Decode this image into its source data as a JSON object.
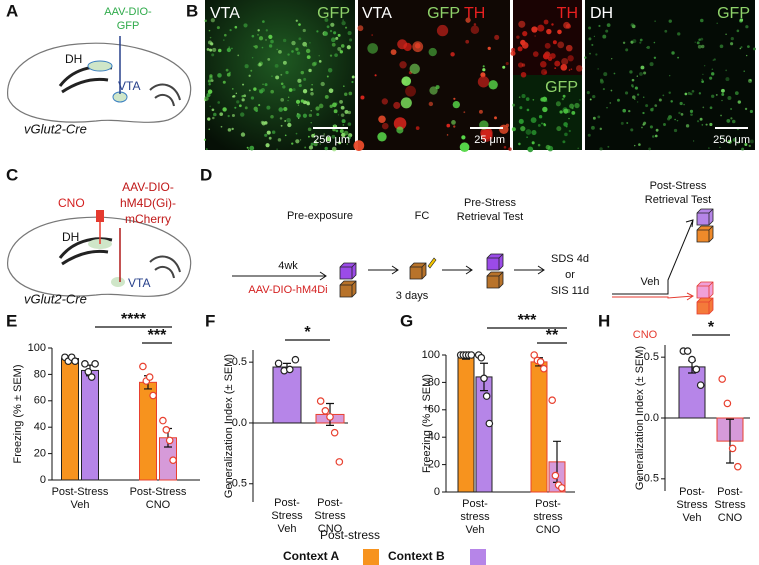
{
  "panel_a": {
    "letter": "A",
    "virus": [
      "AAV-DIO-",
      "GFP"
    ],
    "region_dh": "DH",
    "region_vta": "VTA",
    "mouse": "vGlut2-Cre"
  },
  "panel_b": {
    "letter": "B",
    "images": [
      {
        "labels": [
          "VTA",
          "GFP"
        ],
        "scale": "250 μm"
      },
      {
        "labels": [
          "VTA",
          "GFP",
          "TH"
        ],
        "scale": "25 μm"
      },
      {
        "labels": [
          "TH",
          "GFP"
        ]
      },
      {
        "labels": [
          "DH",
          "GFP"
        ],
        "scale": "250 μm"
      }
    ]
  },
  "panel_c": {
    "letter": "C",
    "drug": "CNO",
    "virus": [
      "AAV-DIO-",
      "hM4D(Gi)-",
      "mCherry"
    ],
    "region_dh": "DH",
    "region_vta": "VTA",
    "mouse": "vGlut2-Cre"
  },
  "panel_d": {
    "letter": "D",
    "steps": [
      "Pre-exposure",
      "FC"
    ],
    "pre_test": [
      "Pre-Stress",
      "Retrieval Test"
    ],
    "post_test": [
      "Post-Stress",
      "Retrieval Test"
    ],
    "delay": "4wk",
    "virus": "AAV-DIO-hM4Di",
    "interval": "3 days",
    "stress": [
      "SDS 4d",
      "or",
      "SIS 11d"
    ],
    "groups": [
      "Veh",
      "CNO"
    ]
  },
  "legend": {
    "title": "Post-stress"
  },
  "chart_data": [
    {
      "type": "bar",
      "panel": "E",
      "ylabel": "Freezing (% ± SEM)",
      "categories": [
        "Post-Stress\nVeh",
        "Post-Stress\nCNO"
      ],
      "ylim": [
        0,
        100
      ],
      "yticks": [
        0,
        20,
        40,
        60,
        80,
        100
      ],
      "significance": [
        "****",
        "***"
      ],
      "series": [
        {
          "name": "Context A",
          "colors": [
            "#f7931e",
            "#f7931e"
          ],
          "edge_colors": [
            "#222222",
            "#e8402f"
          ],
          "values": [
            92,
            74
          ],
          "errors": [
            1,
            5
          ],
          "points": [
            [
              93,
              90,
              93,
              90
            ],
            [
              86,
              75,
              78,
              64
            ]
          ]
        },
        {
          "name": "Context B",
          "colors": [
            "#b685e8",
            "#d69ad9"
          ],
          "edge_colors": [
            "#222222",
            "#e8402f"
          ],
          "values": [
            83,
            32
          ],
          "errors": [
            4,
            7
          ],
          "points": [
            [
              88,
              82,
              78,
              88
            ],
            [
              45,
              38,
              30,
              15
            ]
          ]
        }
      ]
    },
    {
      "type": "bar",
      "panel": "F",
      "ylabel": "Generalization Index (± SEM)",
      "categories": [
        "Post-\nStress\nVeh",
        "Post-\nStress\nCNO"
      ],
      "ylim": [
        -0.65,
        0.6
      ],
      "yticks": [
        -0.5,
        {
          "value": 0,
          "label": "0.0"
        },
        0.5
      ],
      "significance": [
        "*"
      ],
      "series": [
        {
          "colors": [
            "#b685e8",
            "#d69ad9"
          ],
          "edge_colors": [
            "#222222",
            "#e8402f"
          ],
          "values": [
            0.46,
            0.07
          ],
          "errors": [
            0.03,
            0.09
          ],
          "points": [
            [
              0.49,
              0.43,
              0.44,
              0.52
            ],
            [
              0.18,
              0.1,
              0.05,
              -0.08,
              -0.32
            ]
          ]
        }
      ]
    },
    {
      "type": "bar",
      "panel": "G",
      "ylabel": "Freezing (% ± SEM)",
      "categories": [
        "Post-\nstress\nVeh",
        "Post-\nstress\nCNO"
      ],
      "ylim": [
        0,
        100
      ],
      "yticks": [
        0,
        20,
        40,
        60,
        80,
        100
      ],
      "significance": [
        "***",
        "**"
      ],
      "series": [
        {
          "colors": [
            "#f7931e",
            "#f7931e"
          ],
          "edge_colors": [
            "#222222",
            "#e8402f"
          ],
          "values": [
            98,
            95
          ],
          "errors": [
            1,
            3
          ],
          "points": [
            [
              100,
              100,
              100,
              100,
              100
            ],
            [
              100,
              96,
              95,
              90
            ]
          ]
        },
        {
          "colors": [
            "#b685e8",
            "#d69ad9"
          ],
          "edge_colors": [
            "#222222",
            "#e8402f"
          ],
          "values": [
            84,
            22
          ],
          "errors": [
            10,
            15
          ],
          "points": [
            [
              100,
              98,
              83,
              70,
              50
            ],
            [
              67,
              12,
              5,
              3
            ]
          ]
        }
      ]
    },
    {
      "type": "bar",
      "panel": "H",
      "ylabel": "Generalization Index (± SEM)",
      "categories": [
        "Post-\nStress\nVeh",
        "Post-\nStress\nCNO"
      ],
      "ylim": [
        -0.6,
        0.6
      ],
      "yticks": [
        -0.5,
        {
          "value": 0,
          "label": "0.0"
        },
        0.5
      ],
      "significance": [
        "*"
      ],
      "series": [
        {
          "colors": [
            "#b685e8",
            "#d69ad9"
          ],
          "edge_colors": [
            "#222222",
            "#e8402f"
          ],
          "values": [
            0.42,
            -0.19
          ],
          "errors": [
            0.05,
            0.18
          ],
          "points": [
            [
              0.55,
              0.55,
              0.48,
              0.4,
              0.27
            ],
            [
              0.32,
              0.12,
              -0.25,
              -0.4
            ]
          ]
        }
      ]
    }
  ]
}
